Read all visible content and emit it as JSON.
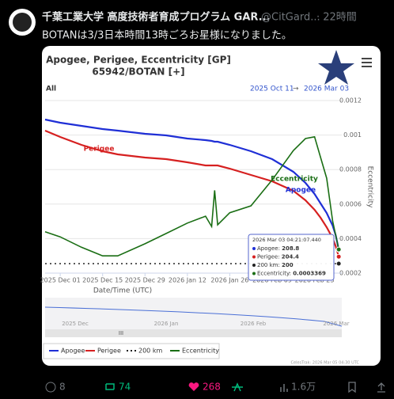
{
  "tweet": {
    "author": "千葉工業大学 高度技術者育成プログラム GAR...",
    "handle": "@CitGard...",
    "time": "· 22時間",
    "text": "BOTANは3/3日本時間13時ごろお星様になりました。"
  },
  "chart": {
    "type": "line",
    "title": "Apogee, Perigee, Eccentricity [GP]",
    "subtitle": "65942/BOTAN [+]",
    "range_button": "All",
    "range_start": "2025 Oct 11",
    "range_arrow": "→",
    "range_end": "2026 Mar 03",
    "x_label": "Date/Time (UTC)",
    "y2_label": "Eccentricity",
    "x": [
      "2025-11-26",
      "2025-12-01",
      "2025-12-08",
      "2025-12-15",
      "2025-12-20",
      "2025-12-29",
      "2026-01-05",
      "2026-01-12",
      "2026-01-18",
      "2026-01-20",
      "2026-01-21",
      "2026-01-22",
      "2026-01-26",
      "2026-02-02",
      "2026-02-09",
      "2026-02-16",
      "2026-02-20",
      "2026-02-23",
      "2026-02-25",
      "2026-02-27",
      "2026-03-01",
      "2026-03-02",
      "2026-03-03"
    ],
    "xlim": [
      "2025-11-26",
      "2026-03-04"
    ],
    "xticks": [
      {
        "value": "2025-12-01",
        "label": "2025 Dec 01"
      },
      {
        "value": "2025-12-15",
        "label": "2025 Dec 15"
      },
      {
        "value": "2025-12-29",
        "label": "2025 Dec 29"
      },
      {
        "value": "2026-01-12",
        "label": "2026 Jan 12"
      },
      {
        "value": "2026-01-26",
        "label": "2026 Jan 26"
      },
      {
        "value": "2026-02-09",
        "label": "2026 Feb 09"
      },
      {
        "value": "2026-02-23",
        "label": "2026 Feb 23"
      }
    ],
    "ylim": [
      194,
      303
    ],
    "y2lim": [
      0.0002,
      0.0012
    ],
    "y2ticks": [
      0.0002,
      0.0004,
      0.0006,
      0.0008,
      0.001,
      0.0012
    ],
    "series": [
      {
        "name": "Apogee",
        "color": "#1f2fd6",
        "values": [
          291,
          289,
          287,
          285,
          284,
          282,
          281,
          279,
          278,
          277.5,
          277,
          277,
          275,
          271,
          266,
          258,
          251,
          244,
          238,
          232,
          224,
          218,
          208.8
        ]
      },
      {
        "name": "Perigee",
        "color": "#d62020",
        "values": [
          284,
          280,
          275,
          271,
          269,
          267,
          266,
          264,
          262,
          262,
          262,
          262,
          260,
          256,
          252,
          246,
          240,
          234,
          229,
          223,
          216,
          211,
          204.4
        ]
      },
      {
        "name": "200 km",
        "color": "#222222",
        "values": [
          200,
          200,
          200,
          200,
          200,
          200,
          200,
          200,
          200,
          200,
          200,
          200,
          200,
          200,
          200,
          200,
          200,
          200,
          200,
          200,
          200,
          200,
          200
        ]
      },
      {
        "name": "Eccentricity",
        "color": "#1a6e14",
        "axis": "y2",
        "values": [
          0.00044,
          0.00041,
          0.00035,
          0.0003,
          0.0003,
          0.00037,
          0.00043,
          0.00049,
          0.00053,
          0.00047,
          0.00068,
          0.00048,
          0.00055,
          0.00059,
          0.00074,
          0.00091,
          0.00098,
          0.00099,
          0.00087,
          0.00075,
          0.0005,
          0.00042,
          0.0003369
        ]
      }
    ],
    "line_labels": [
      "Apogee",
      "Perigee",
      "Eccentricity"
    ],
    "tooltip": {
      "time": "2026 Mar 03 04:21:07.440",
      "rows": [
        {
          "name": "Apogee:",
          "value": 208.8
        },
        {
          "name": "Perigee:",
          "value": 204.4
        },
        {
          "name": "200 km:",
          "value": 200
        },
        {
          "name": "Eccentricity:",
          "value": 0.0003369
        }
      ]
    },
    "navigator_labels": [
      "2025 Dec",
      "2026 Jan",
      "2026 Feb",
      "2026 Mar"
    ],
    "scroll_grip": "III",
    "legend": "bottom",
    "credit": "CelesTrak: 2026 Mar 05 04:30 UTC"
  },
  "actions": {
    "replies": 8,
    "retweets": 74,
    "likes": 268,
    "views": "1.6万"
  }
}
